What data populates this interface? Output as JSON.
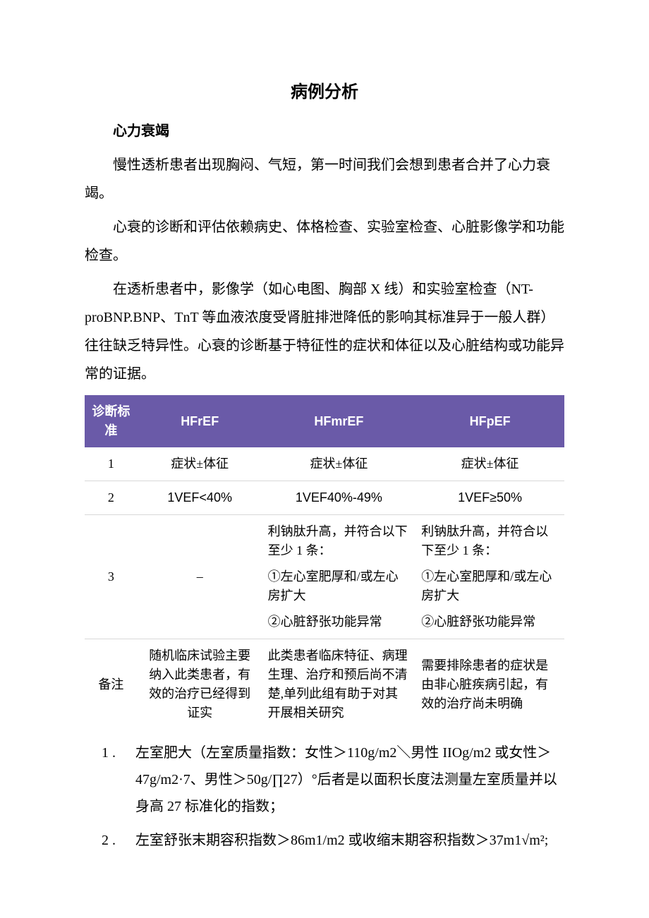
{
  "colors": {
    "page_bg": "#ffffff",
    "text": "#000000",
    "table_header_bg": "#6a5aa8",
    "table_header_text": "#ffffff",
    "row_border": "#d8d8d8"
  },
  "typography": {
    "body_font": "SimSun / 宋体",
    "title_size_pt": 18,
    "body_size_pt": 14,
    "table_size_pt": 13
  },
  "title": "病例分析",
  "section_heading": "心力衰竭",
  "paragraphs": [
    "慢性透析患者出现胸闷、气短，第一时间我们会想到患者合并了心力衰竭。",
    "心衰的诊断和评估依赖病史、体格检查、实验室检查、心脏影像学和功能检查。",
    "在透析患者中，影像学（如心电图、胸部 X 线）和实验室检查（NT-proBNP.BNP、TnT 等血液浓度受肾脏排泄降低的影响其标准异于一般人群）往往缺乏特异性。心衰的诊断基于特征性的症状和体征以及心脏结构或功能异常的证据。"
  ],
  "table": {
    "type": "table",
    "columns": [
      "诊断标准",
      "HFrEF",
      "HFmrEF",
      "HFpEF"
    ],
    "col_widths_pct": [
      11,
      26,
      32,
      31
    ],
    "header_bg": "#6a5aa8",
    "header_text_color": "#ffffff",
    "row_border_color": "#d8d8d8",
    "rows": [
      {
        "label": "1",
        "a": "症状±体征",
        "b": "症状±体征",
        "c": "症状±体征"
      },
      {
        "label": "2",
        "a": "1VEF<40%",
        "b": "1VEF40%-49%",
        "c": "1VEF≥50%"
      },
      {
        "label": "3",
        "a": "–",
        "b_lines": [
          "利钠肽升高，并符合以下至少 1 条：",
          "①左心室肥厚和/或左心房扩大",
          "②心脏舒张功能异常"
        ],
        "c_lines": [
          "利钠肽升高，并符合以下至少 1 条：",
          "①左心室肥厚和/或左心房扩大",
          "②心脏舒张功能异常"
        ]
      },
      {
        "label": "备注",
        "a": "随机临床试验主要纳入此类患者，有效的治疗已经得到证实",
        "b": "此类患者临床特征、病理生理、治疗和预后尚不清楚,单列此组有助于对其开展相关研究",
        "c": "需要排除患者的症状是由非心脏疾病引起，有效的治疗尚未明确"
      }
    ]
  },
  "notes": [
    {
      "marker": "1 .",
      "text": "左室肥大（左室质量指数：女性＞110g/m2＼男性 IIOg/m2 或女性＞47g/m2·7、男性＞50g/∏27）°后者是以面积长度法测量左室质量并以身高 27 标准化的指数；"
    },
    {
      "marker": "2 .",
      "text": "左室舒张末期容积指数＞86m1/m2 或收缩末期容积指数＞37m1√m²;"
    }
  ]
}
